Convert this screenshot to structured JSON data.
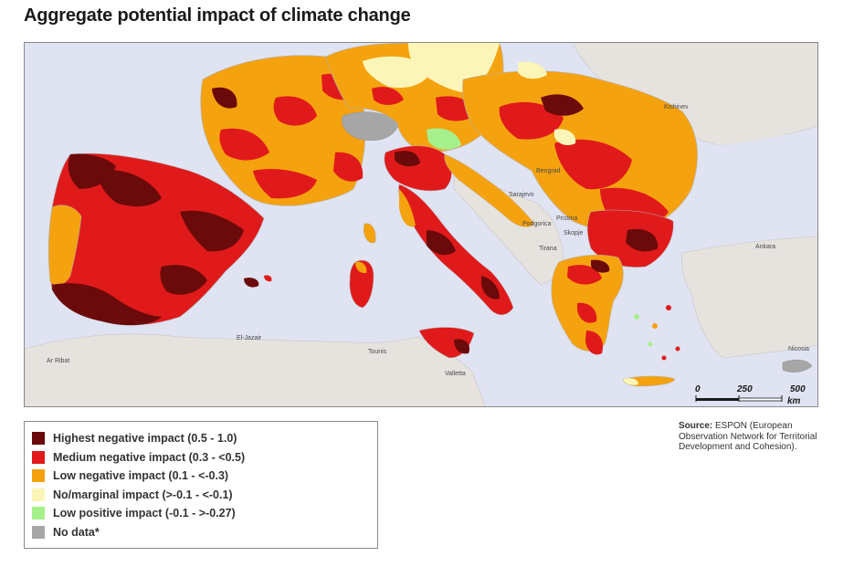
{
  "title": "Aggregate potential impact of climate change",
  "map": {
    "background_colors": {
      "sea": "#dfe3f2",
      "land_outside": "#e6e3df",
      "no_data_country": "#bfbfbf"
    },
    "place_labels": {
      "kishinev": "Kishinev",
      "beograd": "Beograd",
      "sarajevo": "Sarajevo",
      "podgorica": "Podgorica",
      "pristina": "Pristina",
      "skopje": "Skopje",
      "tirana": "Tirana",
      "ankara": "Ankara",
      "el_jazair": "El-Jazair",
      "ar_ribat": "Ar Ribat",
      "tounis": "Tounis",
      "valletta": "Valletta",
      "nicosia": "Nicosia"
    },
    "scale_bar": {
      "labels": [
        "0",
        "250",
        "500"
      ],
      "unit": "km"
    }
  },
  "legend": {
    "items": [
      {
        "label": "Highest negative impact (0.5 - 1.0)",
        "color": "#6b0a0a"
      },
      {
        "label": "Medium negative impact (0.3 - <0.5)",
        "color": "#e01a1a"
      },
      {
        "label": "Low negative impact (0.1 - <-0.3)",
        "color": "#f5a20f"
      },
      {
        "label": "No/marginal impact (>-0.1 - <-0.1)",
        "color": "#fbf6b8"
      },
      {
        "label": "Low positive impact (-0.1 - >-0.27)",
        "color": "#a6f08c"
      },
      {
        "label": "No data*",
        "color": "#a6a6a6"
      }
    ]
  },
  "source": {
    "label": "Source:",
    "text": " ESPON (European Observation Network for Territorial Development and Cohesion)."
  }
}
